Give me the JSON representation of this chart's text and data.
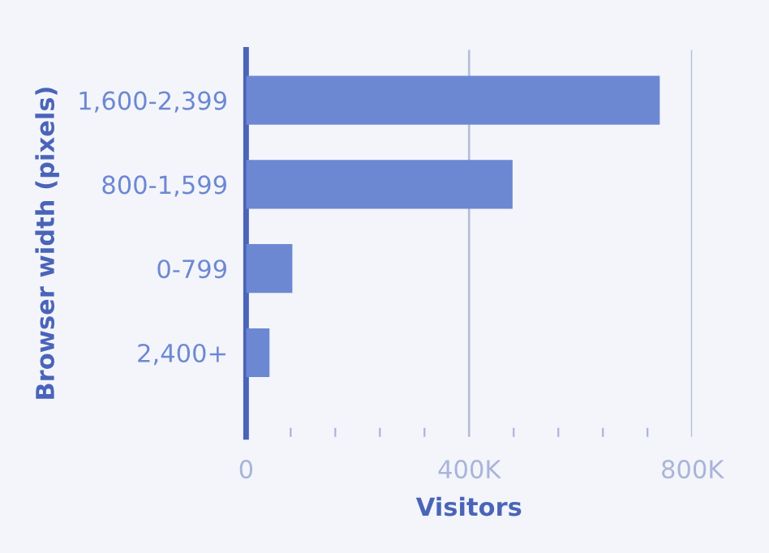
{
  "chart_data": {
    "type": "bar",
    "orientation": "horizontal",
    "categories": [
      "1,600-2,399",
      "800-1,599",
      "0-799",
      "2,400+"
    ],
    "values": [
      742000,
      478000,
      83000,
      42000
    ],
    "color": "#6d88d2",
    "xlabel": "Visitors",
    "ylabel": "Browser width (pixels)",
    "xlim": [
      0,
      800000
    ],
    "xticks": [
      0,
      {
        "value": 80000,
        "label": null
      },
      {
        "value": 160000,
        "label": null
      },
      {
        "value": 240000,
        "label": null
      },
      {
        "value": 320000,
        "label": null
      },
      {
        "value": 400000,
        "label": "400K"
      },
      {
        "value": 480000,
        "label": null
      },
      {
        "value": 560000,
        "label": null
      },
      {
        "value": 640000,
        "label": null
      },
      {
        "value": 720000,
        "label": null
      },
      {
        "value": 800000,
        "label": "800K"
      }
    ],
    "grid": "x"
  }
}
